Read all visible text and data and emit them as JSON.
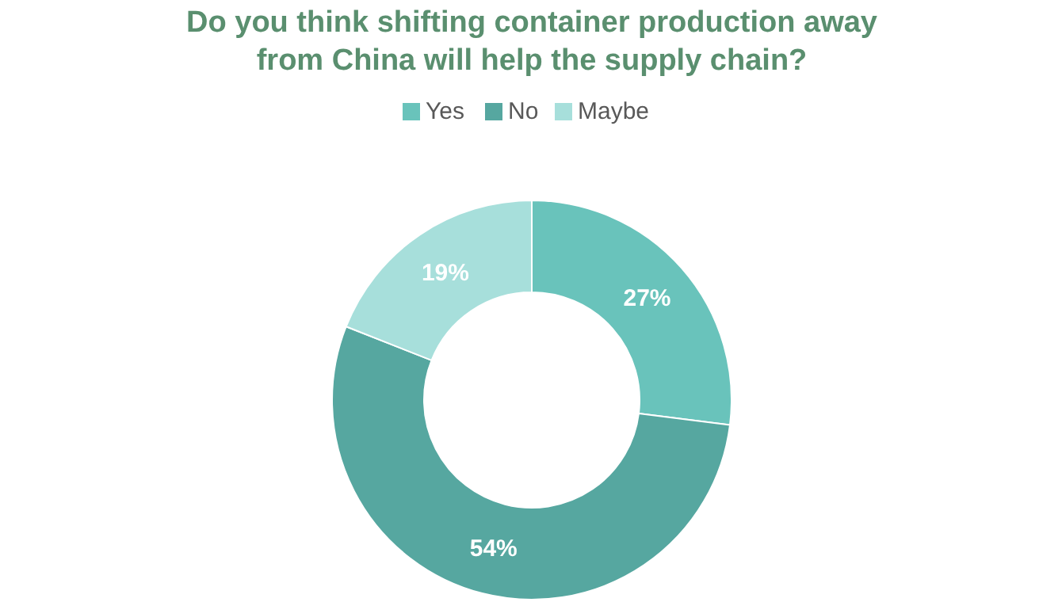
{
  "chart_data": {
    "type": "donut",
    "title": "Do you think shifting container production away from China will help the supply chain?",
    "categories": [
      "Yes",
      "No",
      "Maybe"
    ],
    "values": [
      27,
      54,
      19
    ],
    "colors": [
      "#69c3bb",
      "#56a7a0",
      "#a7dfdb"
    ],
    "value_labels": [
      "27%",
      "54%",
      "19%"
    ],
    "legend": "top"
  }
}
